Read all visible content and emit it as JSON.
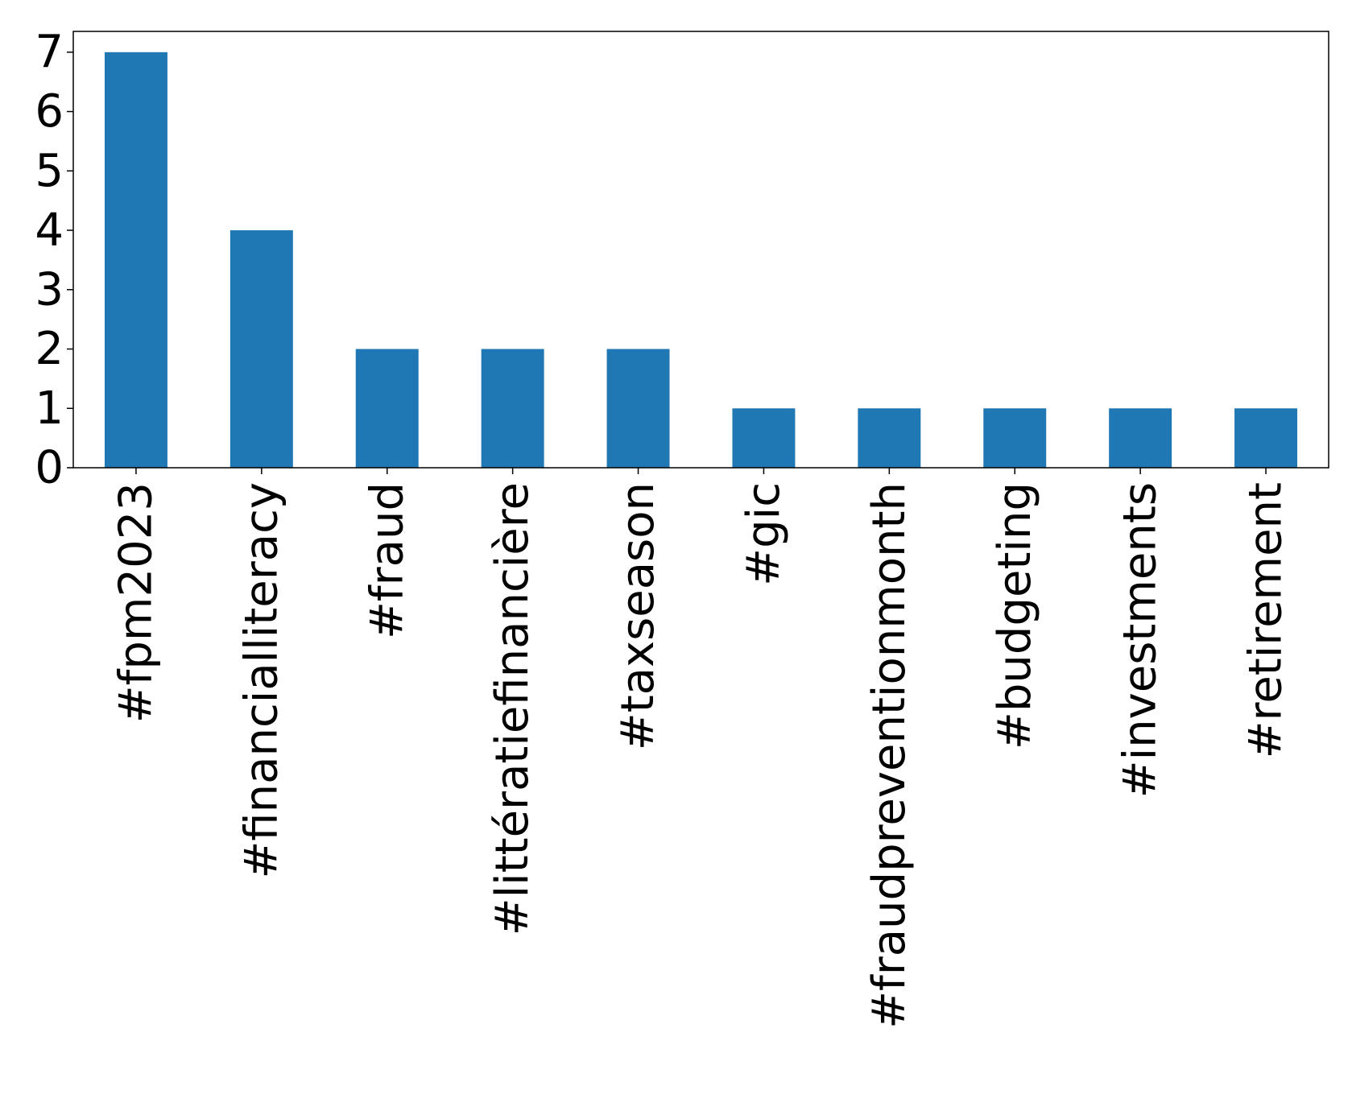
{
  "chart_data": {
    "type": "bar",
    "title": "",
    "xlabel": "",
    "ylabel": "",
    "categories": [
      "#fpm2023",
      "#financialliteracy",
      "#fraud",
      "#littératiefinancière",
      "#taxseason",
      "#gic",
      "#fraudpreventionmonth",
      "#budgeting",
      "#investments",
      "#retirement"
    ],
    "values": [
      7,
      4,
      2,
      2,
      2,
      1,
      1,
      1,
      1,
      1
    ],
    "ylim": [
      0,
      7.35
    ],
    "yticks": [
      0,
      1,
      2,
      3,
      4,
      5,
      6,
      7
    ],
    "grid": false,
    "legend": "none",
    "bar_color": "#1f77b4"
  }
}
